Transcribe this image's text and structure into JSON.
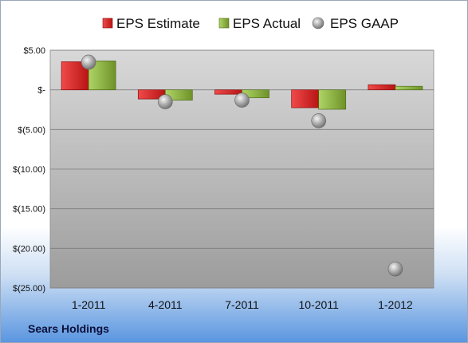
{
  "chart_data": {
    "type": "bar",
    "categories": [
      "1-2011",
      "4-2011",
      "7-2011",
      "10-2011",
      "1-2012"
    ],
    "series": [
      {
        "name": "EPS Estimate",
        "kind": "bar",
        "values": [
          3.55,
          -1.15,
          -0.55,
          -2.25,
          0.65
        ],
        "color": "#d42020"
      },
      {
        "name": "EPS Actual",
        "kind": "bar",
        "values": [
          3.65,
          -1.3,
          -1.0,
          -2.45,
          0.45
        ],
        "color": "#8cb43c"
      },
      {
        "name": "EPS GAAP",
        "kind": "marker",
        "values": [
          3.5,
          -1.5,
          -1.3,
          -3.9,
          -22.6
        ],
        "color": "#9a9a9a"
      }
    ],
    "y_ticks": [
      5,
      0,
      -5,
      -10,
      -15,
      -20,
      -25
    ],
    "y_tick_labels": [
      "$5.00",
      "$-",
      "$(5.00)",
      "$(10.00)",
      "$(15.00)",
      "$(20.00)",
      "$(25.00)"
    ],
    "ylim": [
      -25,
      5
    ],
    "grid": true,
    "legend_position": "top"
  },
  "footer": {
    "company": "Sears Holdings"
  }
}
